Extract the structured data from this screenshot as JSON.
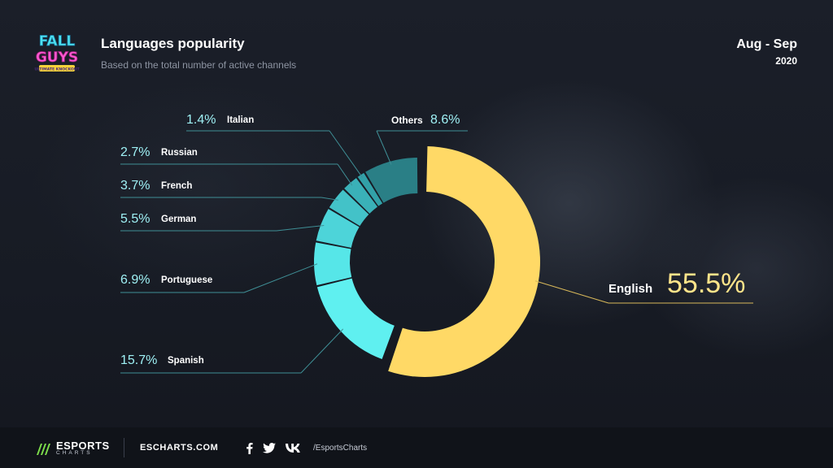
{
  "header": {
    "logo_text": [
      "FALL",
      "GUYS",
      "ULTIMATE KNOCKOUT"
    ],
    "title": "Languages popularity",
    "subtitle": "Based on the total number of active channels",
    "period": "Aug - Sep",
    "year": "2020"
  },
  "chart_data": {
    "type": "pie",
    "title": "Languages popularity",
    "subtitle": "Based on the total number of active channels",
    "categories": [
      "English",
      "Spanish",
      "Portuguese",
      "German",
      "French",
      "Russian",
      "Italian",
      "Others"
    ],
    "values": [
      55.5,
      15.7,
      6.9,
      5.5,
      3.7,
      2.7,
      1.4,
      8.6
    ],
    "labels": [
      "55.5%",
      "15.7%",
      "6.9%",
      "5.5%",
      "3.7%",
      "2.7%",
      "1.4%",
      "8.6%"
    ],
    "colors": [
      "#ffd966",
      "#5ff0f0",
      "#56e6e8",
      "#4dd4d9",
      "#43c2c8",
      "#3ab1b8",
      "#32a1a8",
      "#2a7f86"
    ],
    "donut": true,
    "legend": "none"
  },
  "footer": {
    "brand": "ESPORTS",
    "brand_sub": "CHARTS",
    "site": "ESCHARTS.COM",
    "social_icons": [
      "facebook-icon",
      "twitter-icon",
      "vk-icon"
    ],
    "handle": "/EsportsCharts"
  },
  "colors": {
    "background": "#161a22",
    "accent_yellow": "#ffd966",
    "accent_cyan": "#5ff0f0",
    "value_cyan": "#9ff1f5",
    "footer": "#101319"
  }
}
